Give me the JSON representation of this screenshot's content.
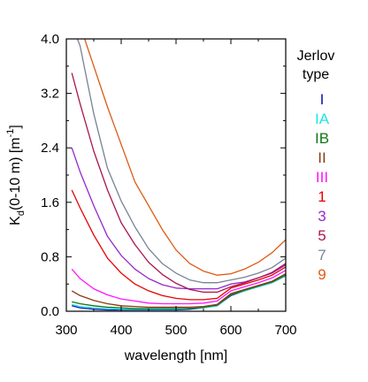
{
  "chart_data": {
    "type": "line",
    "xlabel": "wavelength [nm]",
    "ylabel_main": "K",
    "ylabel_sub": "d",
    "ylabel_mid": "(0-10 m)  [m",
    "ylabel_sup": "-1",
    "ylabel_end": "]",
    "xlim": [
      300,
      700
    ],
    "ylim": [
      0,
      4.0
    ],
    "x_ticks": [
      "300",
      "400",
      "500",
      "600",
      "700"
    ],
    "y_ticks": [
      "0.0",
      "0.8",
      "1.6",
      "2.4",
      "3.2",
      "4.0"
    ],
    "legend_title_line1": "Jerlov",
    "legend_title_line2": "type",
    "legend_position": "right",
    "x": [
      310,
      325,
      350,
      375,
      400,
      425,
      450,
      475,
      500,
      525,
      550,
      575,
      600,
      625,
      650,
      675,
      700
    ],
    "series": [
      {
        "name": "I",
        "color": "#0a14b4",
        "values": [
          0.08,
          0.05,
          0.03,
          0.02,
          0.02,
          0.02,
          0.02,
          0.02,
          0.02,
          0.03,
          0.05,
          0.08,
          0.23,
          0.3,
          0.36,
          0.42,
          0.52
        ]
      },
      {
        "name": "IA",
        "color": "#1ee6e6",
        "values": [
          0.1,
          0.07,
          0.05,
          0.04,
          0.03,
          0.03,
          0.03,
          0.03,
          0.03,
          0.04,
          0.05,
          0.08,
          0.24,
          0.3,
          0.36,
          0.42,
          0.52
        ]
      },
      {
        "name": "IB",
        "color": "#0f7814",
        "values": [
          0.14,
          0.11,
          0.08,
          0.06,
          0.05,
          0.04,
          0.04,
          0.04,
          0.04,
          0.04,
          0.06,
          0.09,
          0.24,
          0.31,
          0.37,
          0.43,
          0.53
        ]
      },
      {
        "name": "II",
        "color": "#8b3a0f",
        "values": [
          0.3,
          0.23,
          0.16,
          0.11,
          0.08,
          0.07,
          0.06,
          0.06,
          0.06,
          0.06,
          0.07,
          0.1,
          0.26,
          0.32,
          0.38,
          0.44,
          0.55
        ]
      },
      {
        "name": "III",
        "color": "#ff14ff",
        "values": [
          0.62,
          0.48,
          0.33,
          0.24,
          0.18,
          0.15,
          0.12,
          0.11,
          0.11,
          0.11,
          0.12,
          0.15,
          0.3,
          0.36,
          0.42,
          0.49,
          0.6
        ]
      },
      {
        "name": "1",
        "color": "#e60000",
        "values": [
          1.78,
          1.52,
          1.12,
          0.78,
          0.56,
          0.4,
          0.3,
          0.23,
          0.19,
          0.17,
          0.17,
          0.19,
          0.34,
          0.4,
          0.46,
          0.53,
          0.65
        ]
      },
      {
        "name": "3",
        "color": "#9628c8",
        "values": [
          2.4,
          2.05,
          1.55,
          1.1,
          0.82,
          0.62,
          0.48,
          0.39,
          0.34,
          0.33,
          0.33,
          0.33,
          0.4,
          0.43,
          0.49,
          0.56,
          0.68
        ]
      },
      {
        "name": "5",
        "color": "#aa1450",
        "values": [
          3.5,
          3.05,
          2.35,
          1.78,
          1.3,
          0.98,
          0.72,
          0.54,
          0.41,
          0.32,
          0.28,
          0.28,
          0.36,
          0.42,
          0.49,
          0.57,
          0.7
        ]
      },
      {
        "name": "7",
        "color": "#788296",
        "values": [
          4.2,
          3.9,
          2.9,
          2.1,
          1.62,
          1.24,
          0.92,
          0.7,
          0.56,
          0.46,
          0.42,
          0.42,
          0.46,
          0.5,
          0.56,
          0.64,
          0.78
        ]
      },
      {
        "name": "9",
        "color": "#dc5a14",
        "values": [
          4.4,
          4.2,
          3.6,
          3.0,
          2.45,
          1.9,
          1.55,
          1.2,
          0.9,
          0.7,
          0.59,
          0.53,
          0.55,
          0.62,
          0.72,
          0.86,
          1.05
        ]
      }
    ]
  }
}
